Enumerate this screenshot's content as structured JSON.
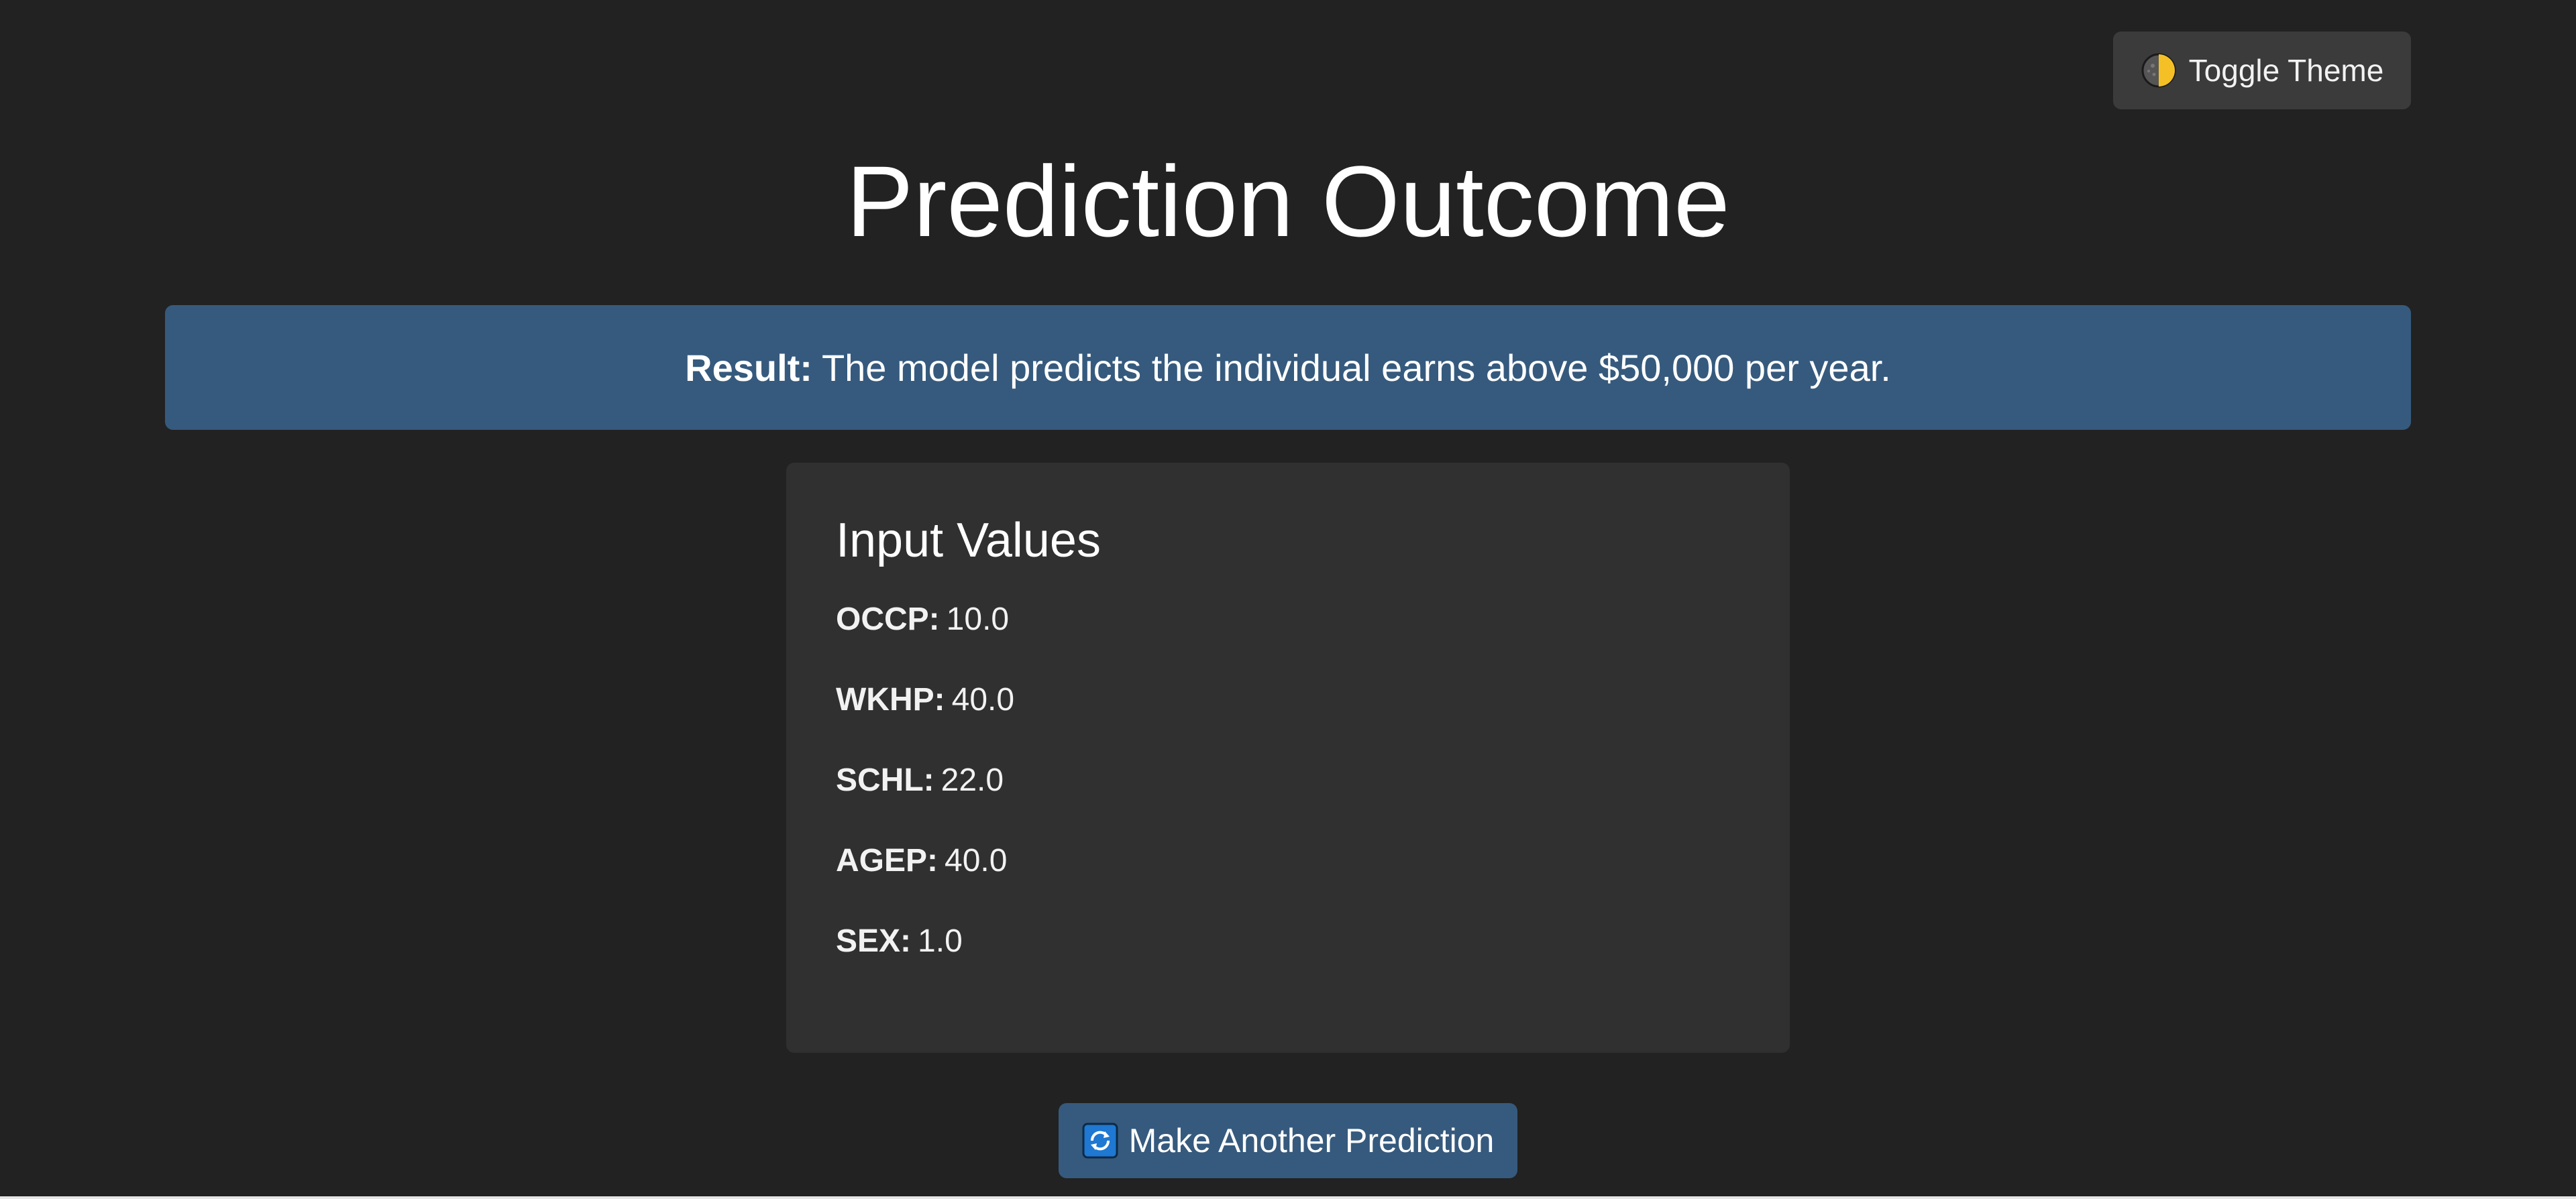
{
  "header": {
    "toggle_theme_label": "Toggle Theme",
    "toggle_theme_icon": "half-moon-icon"
  },
  "page_title": "Prediction Outcome",
  "result": {
    "label": "Result:",
    "text": "The model predicts the individual earns above $50,000 per year."
  },
  "input_card": {
    "title": "Input Values",
    "fields": [
      {
        "key": "OCCP:",
        "value": "10.0"
      },
      {
        "key": "WKHP:",
        "value": "40.0"
      },
      {
        "key": "SCHL:",
        "value": "22.0"
      },
      {
        "key": "AGEP:",
        "value": "40.0"
      },
      {
        "key": "SEX:",
        "value": "1.0"
      }
    ]
  },
  "actions": {
    "predict_again_label": "Make Another Prediction",
    "predict_again_icon": "refresh-icon"
  },
  "colors": {
    "background": "#222222",
    "card": "#303030",
    "accent": "#365a7d",
    "toggle_bg": "#3b3b3b"
  }
}
